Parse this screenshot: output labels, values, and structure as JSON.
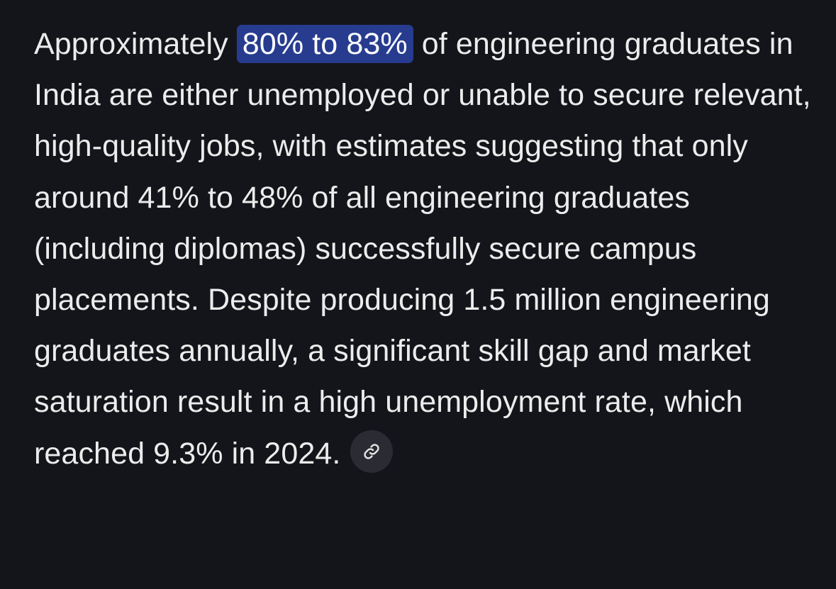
{
  "answer": {
    "text_before_highlight": "Approximately ",
    "highlight": "80% to 83%",
    "text_after_highlight": " of engineering graduates in India are either unemployed or unable to secure relevant, high-quality jobs, with estimates suggesting that only around 41% to 48% of all engineering graduates (including diplomas) successfully secure campus placements. Despite producing 1.5 million engineering graduates annually, a significant skill gap and market saturation result in a high unemployment rate, which reached 9.3% in 2024."
  },
  "citation": {
    "icon": "link-icon"
  },
  "colors": {
    "background": "#14151a",
    "text": "#ececec",
    "highlight_background": "#273c8f",
    "citation_background": "#2b2c33"
  }
}
